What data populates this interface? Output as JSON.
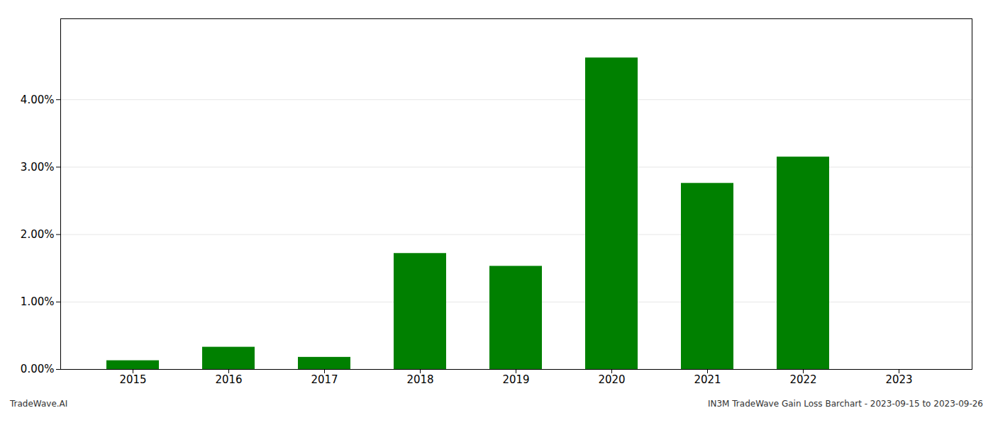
{
  "chart_data": {
    "type": "bar",
    "categories": [
      "2015",
      "2016",
      "2017",
      "2018",
      "2019",
      "2020",
      "2021",
      "2022",
      "2023"
    ],
    "values": [
      0.0013,
      0.0033,
      0.0018,
      0.0172,
      0.0153,
      0.0462,
      0.0276,
      0.0315,
      0.0
    ],
    "color": "#008000",
    "ylim": [
      0,
      0.052
    ],
    "yticks": [
      {
        "value": 0.0,
        "label": "0.00%"
      },
      {
        "value": 0.01,
        "label": "1.00%"
      },
      {
        "value": 0.02,
        "label": "2.00%"
      },
      {
        "value": 0.03,
        "label": "3.00%"
      },
      {
        "value": 0.04,
        "label": "4.00%"
      }
    ],
    "grid": true,
    "annotations": [
      "TradeWave.AI",
      "IN3M TradeWave Gain Loss Barchart - 2023-09-15 to 2023-09-26"
    ]
  }
}
